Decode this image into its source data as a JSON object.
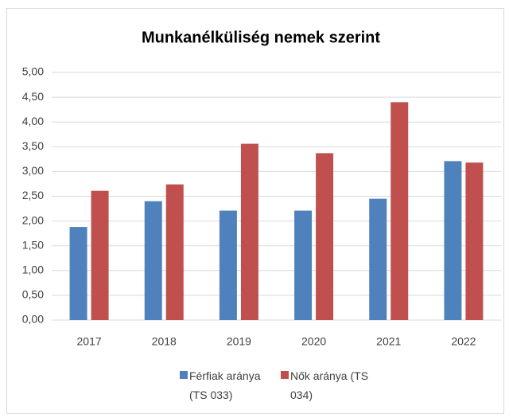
{
  "chart_data": {
    "type": "bar",
    "title": "Munkanélküliség nemek szerint",
    "categories": [
      "2017",
      "2018",
      "2019",
      "2020",
      "2021",
      "2022"
    ],
    "series": [
      {
        "name": "Férfiak aránya (TS 033)",
        "color": "#4f81bd",
        "values": [
          1.88,
          2.4,
          2.21,
          2.21,
          2.45,
          3.21
        ]
      },
      {
        "name": "Nők aránya (TS 034)",
        "color": "#c0504d",
        "values": [
          2.61,
          2.74,
          3.56,
          3.37,
          4.4,
          3.18
        ]
      }
    ],
    "ylim": [
      0,
      5
    ],
    "yticks": [
      {
        "value": 0,
        "label": "0,00"
      },
      {
        "value": 0.5,
        "label": "0,50"
      },
      {
        "value": 1,
        "label": "1,00"
      },
      {
        "value": 1.5,
        "label": "1,50"
      },
      {
        "value": 2,
        "label": "2,00"
      },
      {
        "value": 2.5,
        "label": "2,50"
      },
      {
        "value": 3,
        "label": "3,00"
      },
      {
        "value": 3.5,
        "label": "3,50"
      },
      {
        "value": 4,
        "label": "4,00"
      },
      {
        "value": 4.5,
        "label": "4,50"
      },
      {
        "value": 5,
        "label": "5,00"
      }
    ],
    "grid": true,
    "legend": "bottom"
  }
}
